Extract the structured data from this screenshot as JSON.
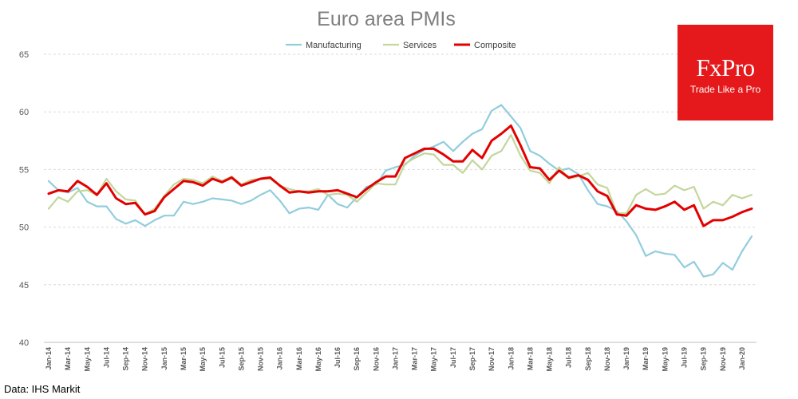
{
  "chart_data": {
    "type": "line",
    "title": "Euro area PMIs",
    "source": "Data: IHS Markit",
    "logo": {
      "name": "FxPro",
      "tagline": "Trade Like a Pro",
      "color": "#e5191b"
    },
    "ylim": [
      40,
      65
    ],
    "yticks": [
      40,
      45,
      50,
      55,
      60,
      65
    ],
    "grid": true,
    "legend_position": "top-center",
    "x": [
      "Jan-14",
      "Feb-14",
      "Mar-14",
      "Apr-14",
      "May-14",
      "Jun-14",
      "Jul-14",
      "Aug-14",
      "Sep-14",
      "Oct-14",
      "Nov-14",
      "Dec-14",
      "Jan-15",
      "Feb-15",
      "Mar-15",
      "Apr-15",
      "May-15",
      "Jun-15",
      "Jul-15",
      "Aug-15",
      "Sep-15",
      "Oct-15",
      "Nov-15",
      "Dec-15",
      "Jan-16",
      "Feb-16",
      "Mar-16",
      "Apr-16",
      "May-16",
      "Jun-16",
      "Jul-16",
      "Aug-16",
      "Sep-16",
      "Oct-16",
      "Nov-16",
      "Dec-16",
      "Jan-17",
      "Feb-17",
      "Mar-17",
      "Apr-17",
      "May-17",
      "Jun-17",
      "Jul-17",
      "Aug-17",
      "Sep-17",
      "Oct-17",
      "Nov-17",
      "Dec-17",
      "Jan-18",
      "Feb-18",
      "Mar-18",
      "Apr-18",
      "May-18",
      "Jun-18",
      "Jul-18",
      "Aug-18",
      "Sep-18",
      "Oct-18",
      "Nov-18",
      "Dec-18",
      "Jan-19",
      "Feb-19",
      "Mar-19",
      "Apr-19",
      "May-19",
      "Jun-19",
      "Jul-19",
      "Aug-19",
      "Sep-19",
      "Oct-19",
      "Nov-19",
      "Dec-19",
      "Jan-20",
      "Feb-20"
    ],
    "x_tick_labels": [
      "Jan-14",
      "Mar-14",
      "May-14",
      "Jul-14",
      "Sep-14",
      "Nov-14",
      "Jan-15",
      "Mar-15",
      "May-15",
      "Jul-15",
      "Sep-15",
      "Nov-15",
      "Jan-16",
      "Mar-16",
      "May-16",
      "Jul-16",
      "Sep-16",
      "Nov-16",
      "Jan-17",
      "Mar-17",
      "May-17",
      "Jul-17",
      "Sep-17",
      "Nov-17",
      "Jan-18",
      "Mar-18",
      "May-18",
      "Jul-18",
      "Sep-18",
      "Nov-18",
      "Jan-19",
      "Mar-19",
      "May-19",
      "Jul-19",
      "Sep-19",
      "Nov-19",
      "Jan-20"
    ],
    "series": [
      {
        "name": "Manufacturing",
        "color": "#92cddc",
        "values": [
          54.0,
          53.2,
          53.0,
          53.4,
          52.2,
          51.8,
          51.8,
          50.7,
          50.3,
          50.6,
          50.1,
          50.6,
          51.0,
          51.0,
          52.2,
          52.0,
          52.2,
          52.5,
          52.4,
          52.3,
          52.0,
          52.3,
          52.8,
          53.2,
          52.3,
          51.2,
          51.6,
          51.7,
          51.5,
          52.8,
          52.0,
          51.7,
          52.6,
          53.5,
          53.7,
          54.9,
          55.2,
          55.4,
          56.2,
          56.7,
          57.0,
          57.4,
          56.6,
          57.4,
          58.1,
          58.5,
          60.1,
          60.6,
          59.6,
          58.6,
          56.6,
          56.2,
          55.5,
          54.9,
          55.1,
          54.6,
          53.2,
          52.0,
          51.8,
          51.4,
          50.5,
          49.3,
          47.5,
          47.9,
          47.7,
          47.6,
          46.5,
          47.0,
          45.7,
          45.9,
          46.9,
          46.3,
          47.9,
          49.2
        ]
      },
      {
        "name": "Services",
        "color": "#c3d69b",
        "values": [
          51.6,
          52.6,
          52.2,
          53.1,
          53.2,
          52.8,
          54.2,
          53.1,
          52.4,
          52.3,
          51.1,
          51.6,
          52.7,
          53.7,
          54.2,
          54.1,
          53.8,
          54.4,
          54.0,
          54.4,
          53.7,
          54.1,
          54.2,
          54.2,
          53.6,
          53.3,
          53.1,
          53.1,
          53.3,
          52.8,
          52.9,
          52.8,
          52.2,
          53.0,
          53.8,
          53.7,
          53.7,
          55.5,
          56.0,
          56.4,
          56.3,
          55.4,
          55.4,
          54.7,
          55.8,
          55.0,
          56.2,
          56.6,
          58.0,
          56.2,
          54.9,
          54.7,
          53.8,
          55.2,
          54.2,
          54.4,
          54.7,
          53.7,
          53.4,
          51.2,
          51.2,
          52.8,
          53.3,
          52.8,
          52.9,
          53.6,
          53.2,
          53.5,
          51.6,
          52.2,
          51.9,
          52.8,
          52.5,
          52.8
        ]
      },
      {
        "name": "Composite",
        "color": "#e30000",
        "values": [
          52.9,
          53.2,
          53.1,
          54.0,
          53.5,
          52.8,
          53.8,
          52.5,
          52.0,
          52.1,
          51.1,
          51.4,
          52.6,
          53.3,
          54.0,
          53.9,
          53.6,
          54.2,
          53.9,
          54.3,
          53.6,
          53.9,
          54.2,
          54.3,
          53.6,
          53.0,
          53.1,
          53.0,
          53.1,
          53.1,
          53.2,
          52.9,
          52.6,
          53.3,
          53.9,
          54.4,
          54.4,
          56.0,
          56.4,
          56.8,
          56.8,
          56.3,
          55.7,
          55.7,
          56.7,
          56.0,
          57.5,
          58.1,
          58.8,
          57.1,
          55.2,
          55.1,
          54.1,
          54.9,
          54.3,
          54.5,
          54.1,
          53.1,
          52.7,
          51.1,
          51.0,
          51.9,
          51.6,
          51.5,
          51.8,
          52.2,
          51.5,
          51.9,
          50.1,
          50.6,
          50.6,
          50.9,
          51.3,
          51.6
        ]
      }
    ]
  }
}
